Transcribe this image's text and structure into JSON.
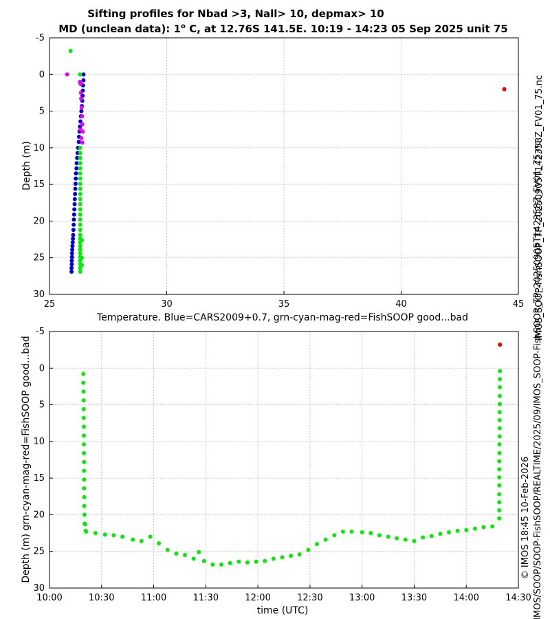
{
  "colors": {
    "model": "#0000dd",
    "good": "#00ee00",
    "cyan": "#00dddd",
    "mag": "#ee00ee",
    "bad": "#ee0000",
    "grid": "#bbbbbb"
  },
  "title": {
    "line1": "Sifting profiles for Nbad >3, Nall> 10, depmax> 10",
    "line2_pre": "MD (unclean data): 1",
    "line2_sup": "o",
    "line2_post": " C, at 12.76S 141.5E. 10:19 - 14:23 05 Sep 2025 unit 75"
  },
  "side_texts": {
    "filename": "IMOS_SOOP-FishSOOP_TP_20250905T142358Z_FV01_75.nc",
    "copyright_line1": "© IMOS 18:45 10-Feb-2026",
    "copyright_line2": "IMOS/SOOP/SOOP-FishSOOP/REALTIME/2025/09/IMOS_SOOP-FishSOOP_TP_20250905T142358Z_FV01_75.nc"
  },
  "chart_data": [
    {
      "type": "scatter",
      "title": "Sifting profiles for Nbad >3, Nall> 10, depmax> 10",
      "xlabel": "Temperature. Blue=CARS2009+0.7, grn-cyan-mag-red=FishSOOP good...bad",
      "ylabel": "Depth (m)",
      "xlim": [
        25,
        45
      ],
      "ylim": [
        30,
        -5
      ],
      "grid": true,
      "xticks": [
        "25",
        "30",
        "35",
        "40",
        "45"
      ],
      "yticks": [
        "-5",
        "0",
        "5",
        "10",
        "15",
        "20",
        "25",
        "30"
      ],
      "series": [
        {
          "name": "CARS2009+0.7",
          "color": "model",
          "points": [
            [
              26.45,
              0
            ],
            [
              26.45,
              0.8
            ],
            [
              26.43,
              1.5
            ],
            [
              26.42,
              2.2
            ],
            [
              26.41,
              2.9
            ],
            [
              26.4,
              3.6
            ],
            [
              26.38,
              4.3
            ],
            [
              26.36,
              5.0
            ],
            [
              26.34,
              5.7
            ],
            [
              26.32,
              6.4
            ],
            [
              26.3,
              7.1
            ],
            [
              26.28,
              7.8
            ],
            [
              26.26,
              8.5
            ],
            [
              26.25,
              9.2
            ],
            [
              26.22,
              10.0
            ],
            [
              26.2,
              10.7
            ],
            [
              26.18,
              11.4
            ],
            [
              26.16,
              12.1
            ],
            [
              26.15,
              12.8
            ],
            [
              26.13,
              13.5
            ],
            [
              26.12,
              14.2
            ],
            [
              26.11,
              14.9
            ],
            [
              26.1,
              15.6
            ],
            [
              26.09,
              16.3
            ],
            [
              26.08,
              17.0
            ],
            [
              26.07,
              17.7
            ],
            [
              26.06,
              18.4
            ],
            [
              26.05,
              19.1
            ],
            [
              26.04,
              19.8
            ],
            [
              26.03,
              20.5
            ],
            [
              26.02,
              21.2
            ],
            [
              26.01,
              21.9
            ],
            [
              26.0,
              22.4
            ],
            [
              25.99,
              22.9
            ],
            [
              25.98,
              23.4
            ],
            [
              25.97,
              23.9
            ],
            [
              25.96,
              24.4
            ],
            [
              25.96,
              24.9
            ],
            [
              25.95,
              25.4
            ],
            [
              25.95,
              25.9
            ],
            [
              25.94,
              26.4
            ],
            [
              25.94,
              26.9
            ]
          ]
        },
        {
          "name": "FishSOOP good",
          "color": "good",
          "points": [
            [
              25.9,
              -3.2
            ],
            [
              26.3,
              0
            ],
            [
              26.31,
              10.0
            ],
            [
              26.31,
              10.7
            ],
            [
              26.31,
              11.4
            ],
            [
              26.31,
              12.1
            ],
            [
              26.31,
              12.8
            ],
            [
              26.31,
              13.5
            ],
            [
              26.31,
              14.2
            ],
            [
              26.31,
              14.9
            ],
            [
              26.31,
              15.6
            ],
            [
              26.31,
              16.3
            ],
            [
              26.31,
              17.0
            ],
            [
              26.31,
              17.7
            ],
            [
              26.31,
              18.4
            ],
            [
              26.31,
              19.1
            ],
            [
              26.31,
              19.8
            ],
            [
              26.31,
              20.5
            ],
            [
              26.31,
              21.2
            ],
            [
              26.31,
              21.9
            ],
            [
              26.31,
              22.4
            ],
            [
              26.31,
              22.9
            ],
            [
              26.31,
              23.4
            ],
            [
              26.31,
              23.9
            ],
            [
              26.31,
              24.4
            ],
            [
              26.31,
              24.9
            ],
            [
              26.31,
              25.4
            ],
            [
              26.31,
              25.9
            ],
            [
              26.31,
              26.4
            ],
            [
              26.31,
              26.9
            ],
            [
              26.38,
              22.6
            ],
            [
              26.38,
              25.0
            ],
            [
              26.38,
              26.0
            ]
          ]
        },
        {
          "name": "FishSOOP magenta",
          "color": "mag",
          "points": [
            [
              25.75,
              0
            ],
            [
              26.3,
              1.0
            ],
            [
              26.32,
              1.2
            ],
            [
              26.33,
              1.3
            ],
            [
              26.34,
              2.5
            ],
            [
              26.35,
              3.3
            ],
            [
              26.37,
              4.5
            ],
            [
              26.39,
              5.7
            ],
            [
              26.4,
              6.8
            ],
            [
              26.42,
              7.8
            ],
            [
              26.32,
              7.5
            ],
            [
              26.36,
              8.7
            ],
            [
              26.4,
              9.3
            ]
          ]
        },
        {
          "name": "FishSOOP bad",
          "color": "bad",
          "points": [
            [
              44.4,
              2.0
            ]
          ]
        }
      ]
    },
    {
      "type": "scatter",
      "xlabel": "time (UTC)",
      "ylabel": "Depth (m) grn-cyan-mag-red=FishSOOP good...bad",
      "xlim": [
        "10:00",
        "14:30"
      ],
      "ylim": [
        30,
        -5
      ],
      "grid": true,
      "xticks": [
        "10:00",
        "10:30",
        "11:00",
        "11:30",
        "12:00",
        "12:30",
        "13:00",
        "13:30",
        "14:00",
        "14:30"
      ],
      "yticks": [
        "-5",
        "0",
        "5",
        "10",
        "15",
        "20",
        "25",
        "30"
      ],
      "series": [
        {
          "name": "FishSOOP good",
          "color": "good",
          "points_minutes": [
            [
              19.5,
              0.8
            ],
            [
              19.5,
              2.0
            ],
            [
              19.6,
              3.2
            ],
            [
              19.7,
              4.4
            ],
            [
              19.7,
              5.6
            ],
            [
              19.7,
              6.8
            ],
            [
              19.8,
              8.0
            ],
            [
              19.8,
              9.2
            ],
            [
              19.8,
              10.4
            ],
            [
              19.8,
              11.6
            ],
            [
              19.9,
              12.8
            ],
            [
              19.9,
              14.0
            ],
            [
              19.9,
              15.2
            ],
            [
              19.9,
              16.4
            ],
            [
              20.0,
              17.6
            ],
            [
              20.0,
              18.8
            ],
            [
              20.1,
              20.0
            ],
            [
              20.2,
              21.2
            ],
            [
              20.6,
              21.3
            ],
            [
              20.8,
              22.2
            ],
            [
              21.1,
              22.3
            ],
            [
              26.5,
              22.5
            ],
            [
              32,
              22.7
            ],
            [
              37,
              22.8
            ],
            [
              42,
              23.0
            ],
            [
              48,
              23.4
            ],
            [
              53,
              23.6
            ],
            [
              58,
              23.0
            ],
            [
              63,
              23.9
            ],
            [
              68,
              24.8
            ],
            [
              73,
              25.3
            ],
            [
              78,
              25.5
            ],
            [
              83,
              26.0
            ],
            [
              86,
              25.1
            ],
            [
              89,
              26.3
            ],
            [
              94,
              26.8
            ],
            [
              99,
              26.8
            ],
            [
              104,
              26.6
            ],
            [
              109,
              26.4
            ],
            [
              114,
              26.5
            ],
            [
              119,
              26.4
            ],
            [
              124,
              26.3
            ],
            [
              129,
              26.0
            ],
            [
              134,
              25.8
            ],
            [
              139,
              25.6
            ],
            [
              144,
              25.4
            ],
            [
              149,
              24.8
            ],
            [
              154,
              24.0
            ],
            [
              159,
              23.4
            ],
            [
              164,
              22.8
            ],
            [
              169,
              22.3
            ],
            [
              174,
              22.3
            ],
            [
              180,
              22.4
            ],
            [
              185,
              22.5
            ],
            [
              190,
              22.8
            ],
            [
              195,
              23.0
            ],
            [
              200,
              23.2
            ],
            [
              205,
              23.4
            ],
            [
              210,
              23.6
            ],
            [
              215,
              23.1
            ],
            [
              220,
              22.9
            ],
            [
              225,
              22.6
            ],
            [
              230,
              22.4
            ],
            [
              235,
              22.2
            ],
            [
              240,
              22.1
            ],
            [
              245,
              21.9
            ],
            [
              250,
              21.7
            ],
            [
              255,
              21.6
            ],
            [
              259,
              20.5
            ],
            [
              259,
              19.4
            ],
            [
              259,
              18.3
            ],
            [
              259,
              17.2
            ],
            [
              259,
              16.0
            ],
            [
              259,
              14.9
            ],
            [
              259,
              13.8
            ],
            [
              259,
              12.7
            ],
            [
              259.1,
              11.6
            ],
            [
              259.1,
              10.4
            ],
            [
              259.2,
              9.3
            ],
            [
              259.2,
              8.2
            ],
            [
              259.2,
              7.1
            ],
            [
              259.2,
              6.0
            ],
            [
              259.3,
              4.9
            ],
            [
              259.3,
              3.8
            ],
            [
              259.3,
              2.6
            ],
            [
              259.3,
              1.5
            ],
            [
              259.4,
              0.4
            ]
          ]
        },
        {
          "name": "FishSOOP bad",
          "color": "bad",
          "points_minutes": [
            [
              259.4,
              -3.2
            ]
          ]
        }
      ]
    }
  ]
}
